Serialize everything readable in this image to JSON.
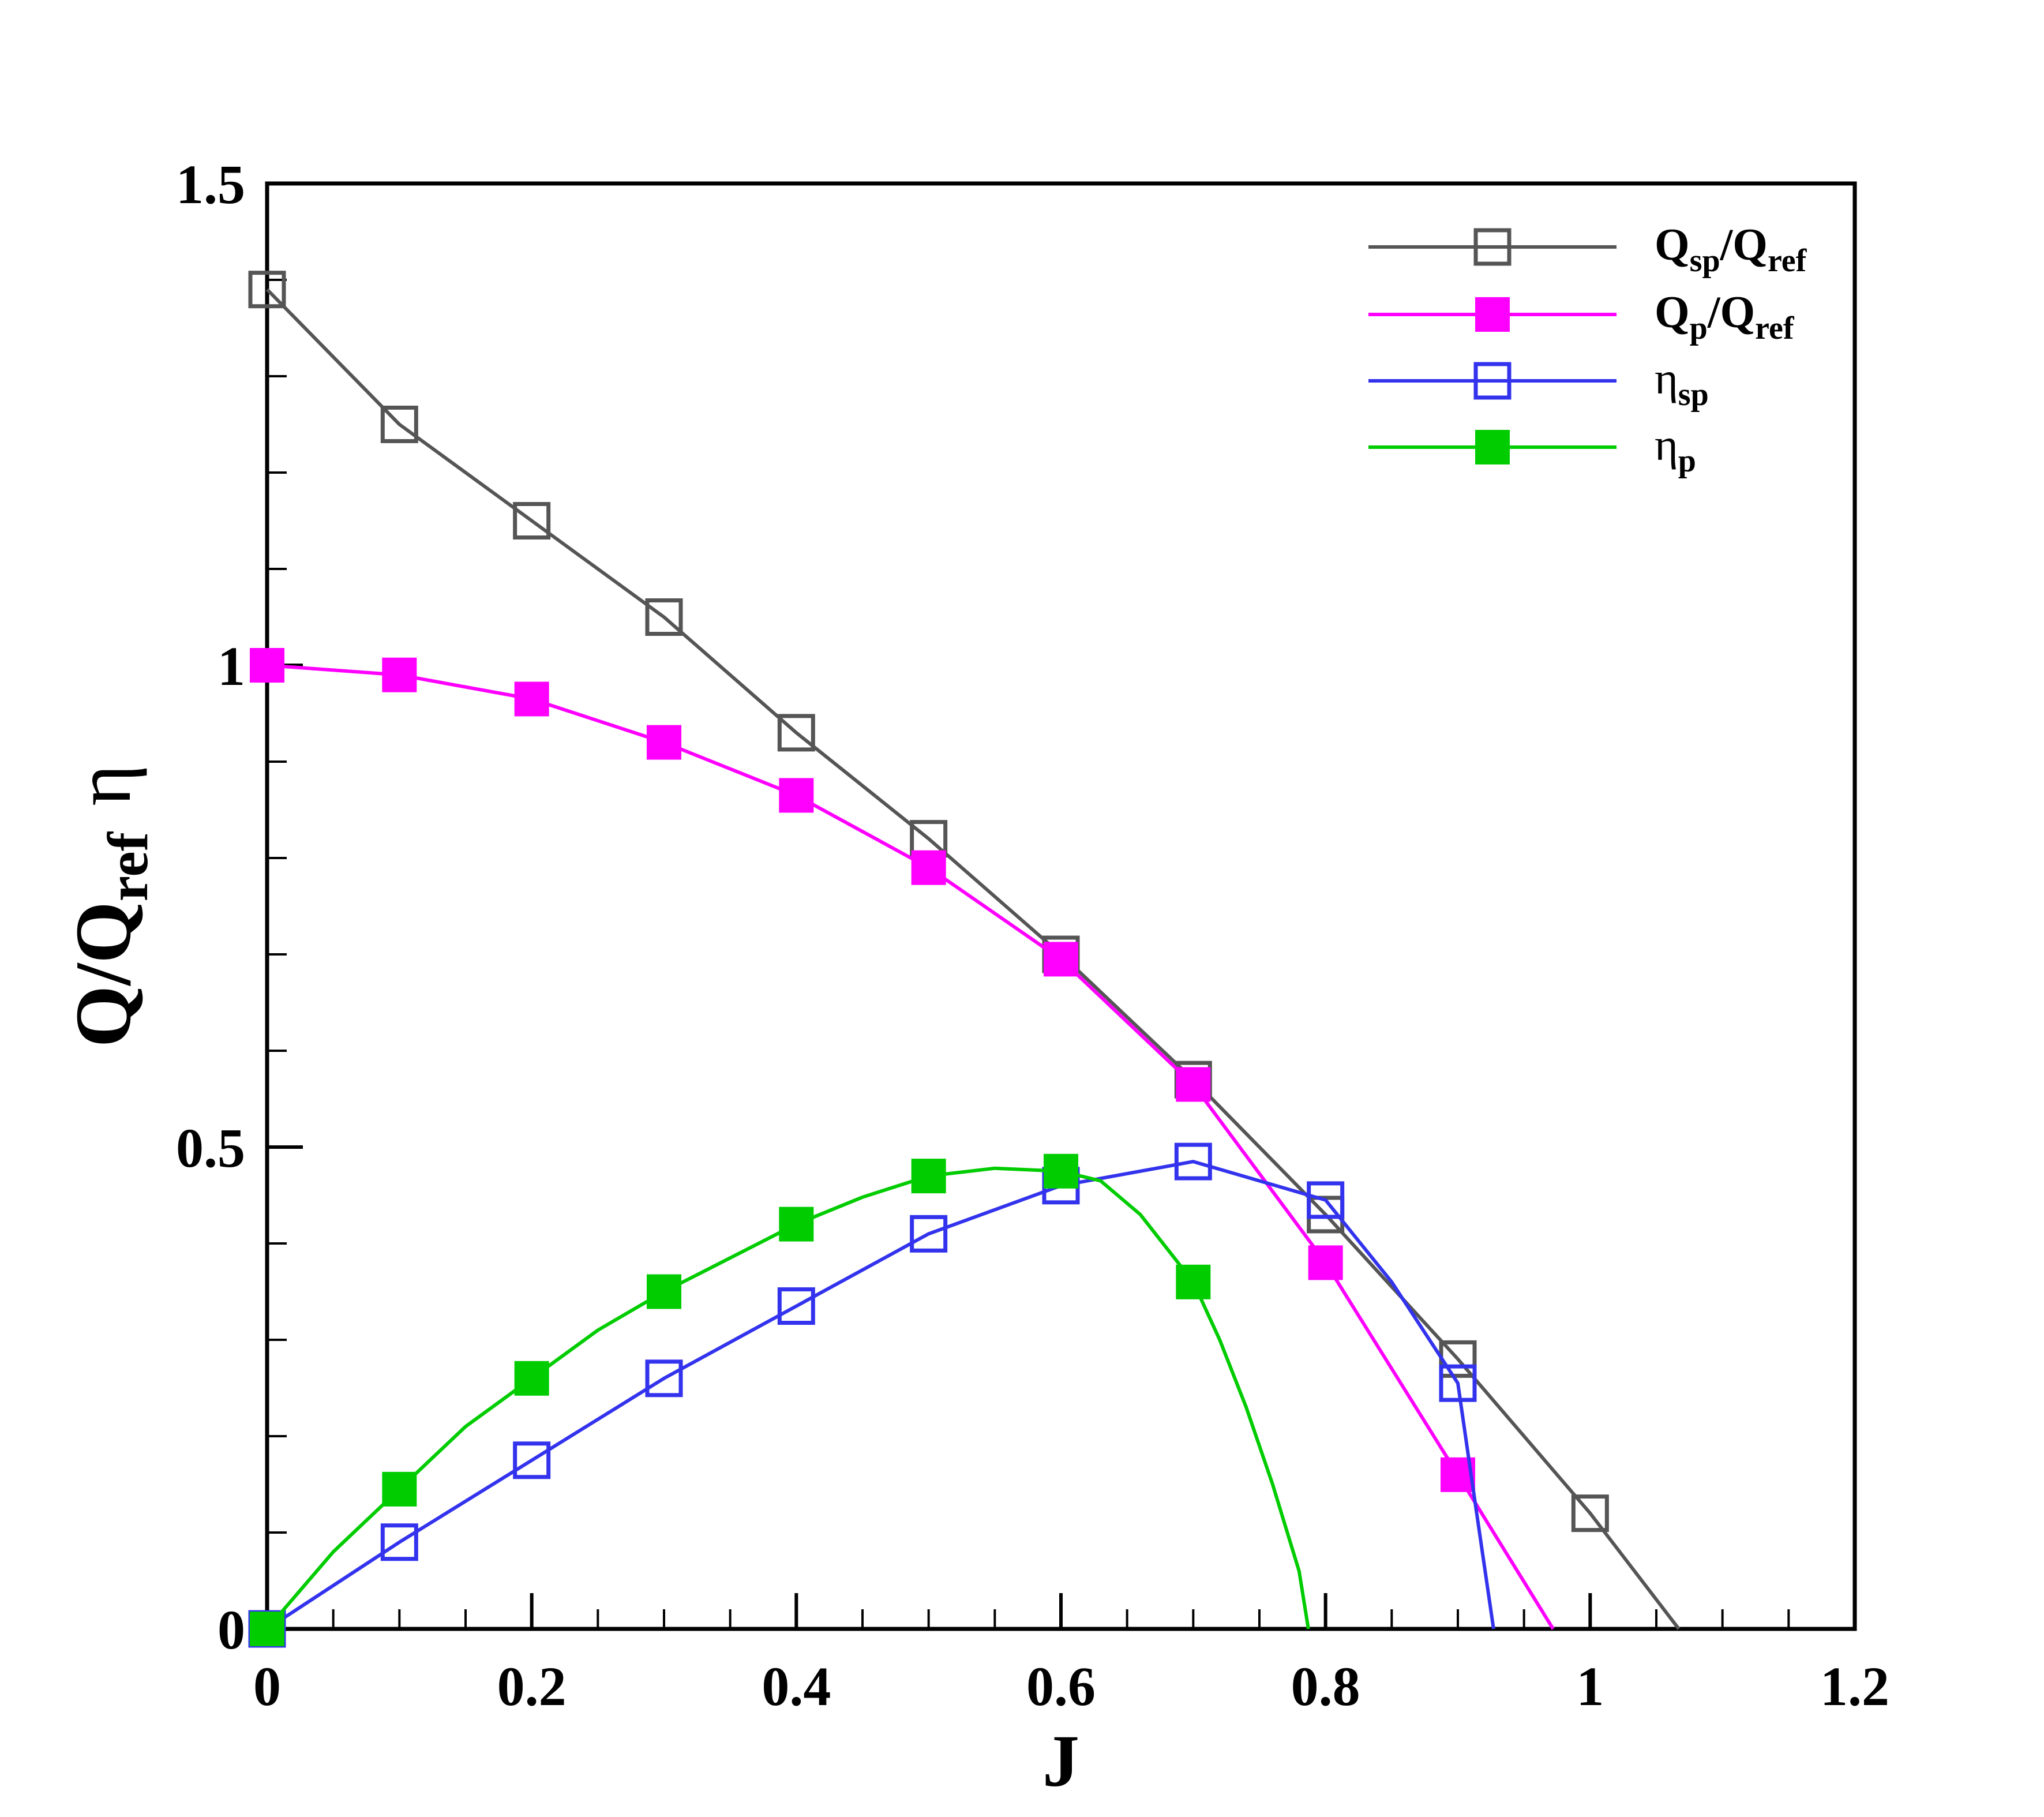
{
  "chart_data": {
    "type": "line",
    "xlabel": "J",
    "ylabel": {
      "main": "Q/Q",
      "main_sub": "ref",
      "secondary": "η"
    },
    "xlim": [
      0,
      1.2
    ],
    "ylim": [
      0,
      1.5
    ],
    "x_ticks": [
      "0",
      "0.2",
      "0.4",
      "0.6",
      "0.8",
      "1",
      "1.2"
    ],
    "y_ticks": [
      "0",
      "0.5",
      "1",
      "1.5"
    ],
    "grid": false,
    "legend_position": "top-right",
    "series": [
      {
        "name": "Qsp/Qref",
        "label": {
          "a": "Q",
          "a_sub": "sp",
          "b": "/Q",
          "b_sub": "ref"
        },
        "color": "#555555",
        "marker": "open-square",
        "points": [
          [
            0,
            1.39
          ],
          [
            0.1,
            1.25
          ],
          [
            0.2,
            1.15
          ],
          [
            0.3,
            1.05
          ],
          [
            0.4,
            0.93
          ],
          [
            0.5,
            0.82
          ],
          [
            0.6,
            0.7
          ],
          [
            0.7,
            0.57
          ],
          [
            0.8,
            0.43
          ],
          [
            0.9,
            0.28
          ],
          [
            1.0,
            0.12
          ]
        ],
        "curve": [
          [
            0,
            1.39
          ],
          [
            0.1,
            1.25
          ],
          [
            0.2,
            1.15
          ],
          [
            0.3,
            1.05
          ],
          [
            0.4,
            0.93
          ],
          [
            0.5,
            0.82
          ],
          [
            0.6,
            0.7
          ],
          [
            0.7,
            0.57
          ],
          [
            0.8,
            0.43
          ],
          [
            0.9,
            0.28
          ],
          [
            1.0,
            0.12
          ],
          [
            1.067,
            0.0
          ]
        ]
      },
      {
        "name": "Qp/Qref",
        "label": {
          "a": "Q",
          "a_sub": "p",
          "b": "/Q",
          "b_sub": "ref"
        },
        "color": "#ff00ff",
        "marker": "filled-square",
        "points": [
          [
            0,
            1.0
          ],
          [
            0.1,
            0.99
          ],
          [
            0.2,
            0.965
          ],
          [
            0.3,
            0.92
          ],
          [
            0.4,
            0.865
          ],
          [
            0.5,
            0.79
          ],
          [
            0.6,
            0.695
          ],
          [
            0.7,
            0.565
          ],
          [
            0.8,
            0.38
          ],
          [
            0.9,
            0.16
          ]
        ],
        "curve": [
          [
            0,
            1.0
          ],
          [
            0.1,
            0.99
          ],
          [
            0.2,
            0.965
          ],
          [
            0.3,
            0.92
          ],
          [
            0.4,
            0.865
          ],
          [
            0.5,
            0.79
          ],
          [
            0.6,
            0.695
          ],
          [
            0.7,
            0.565
          ],
          [
            0.8,
            0.38
          ],
          [
            0.9,
            0.16
          ],
          [
            0.972,
            0.0
          ]
        ]
      },
      {
        "name": "ηsp",
        "label": {
          "a": "η",
          "a_sub": "sp",
          "b": "",
          "b_sub": ""
        },
        "color": "#3333ee",
        "marker": "open-square",
        "points": [
          [
            0,
            0.0
          ],
          [
            0.1,
            0.09
          ],
          [
            0.2,
            0.175
          ],
          [
            0.3,
            0.26
          ],
          [
            0.4,
            0.335
          ],
          [
            0.5,
            0.41
          ],
          [
            0.6,
            0.46
          ],
          [
            0.7,
            0.485
          ],
          [
            0.8,
            0.445
          ],
          [
            0.9,
            0.255
          ]
        ],
        "curve": [
          [
            0,
            0.0
          ],
          [
            0.1,
            0.09
          ],
          [
            0.2,
            0.175
          ],
          [
            0.3,
            0.26
          ],
          [
            0.4,
            0.335
          ],
          [
            0.5,
            0.41
          ],
          [
            0.6,
            0.46
          ],
          [
            0.7,
            0.485
          ],
          [
            0.8,
            0.445
          ],
          [
            0.85,
            0.36
          ],
          [
            0.9,
            0.255
          ],
          [
            0.91,
            0.16
          ],
          [
            0.927,
            0.0
          ]
        ]
      },
      {
        "name": "ηp",
        "label": {
          "a": "η",
          "a_sub": "p",
          "b": "",
          "b_sub": ""
        },
        "color": "#00cc00",
        "marker": "filled-square",
        "points": [
          [
            0,
            0.0
          ],
          [
            0.1,
            0.145
          ],
          [
            0.2,
            0.26
          ],
          [
            0.3,
            0.35
          ],
          [
            0.4,
            0.42
          ],
          [
            0.5,
            0.47
          ],
          [
            0.6,
            0.475
          ],
          [
            0.7,
            0.36
          ]
        ],
        "curve": [
          [
            0,
            0.0
          ],
          [
            0.05,
            0.08
          ],
          [
            0.1,
            0.145
          ],
          [
            0.15,
            0.21
          ],
          [
            0.2,
            0.26
          ],
          [
            0.25,
            0.31
          ],
          [
            0.3,
            0.35
          ],
          [
            0.35,
            0.385
          ],
          [
            0.4,
            0.42
          ],
          [
            0.45,
            0.448
          ],
          [
            0.5,
            0.47
          ],
          [
            0.55,
            0.478
          ],
          [
            0.6,
            0.475
          ],
          [
            0.63,
            0.465
          ],
          [
            0.66,
            0.43
          ],
          [
            0.7,
            0.36
          ],
          [
            0.72,
            0.3
          ],
          [
            0.74,
            0.23
          ],
          [
            0.76,
            0.15
          ],
          [
            0.78,
            0.06
          ],
          [
            0.787,
            0.0
          ]
        ]
      }
    ]
  }
}
